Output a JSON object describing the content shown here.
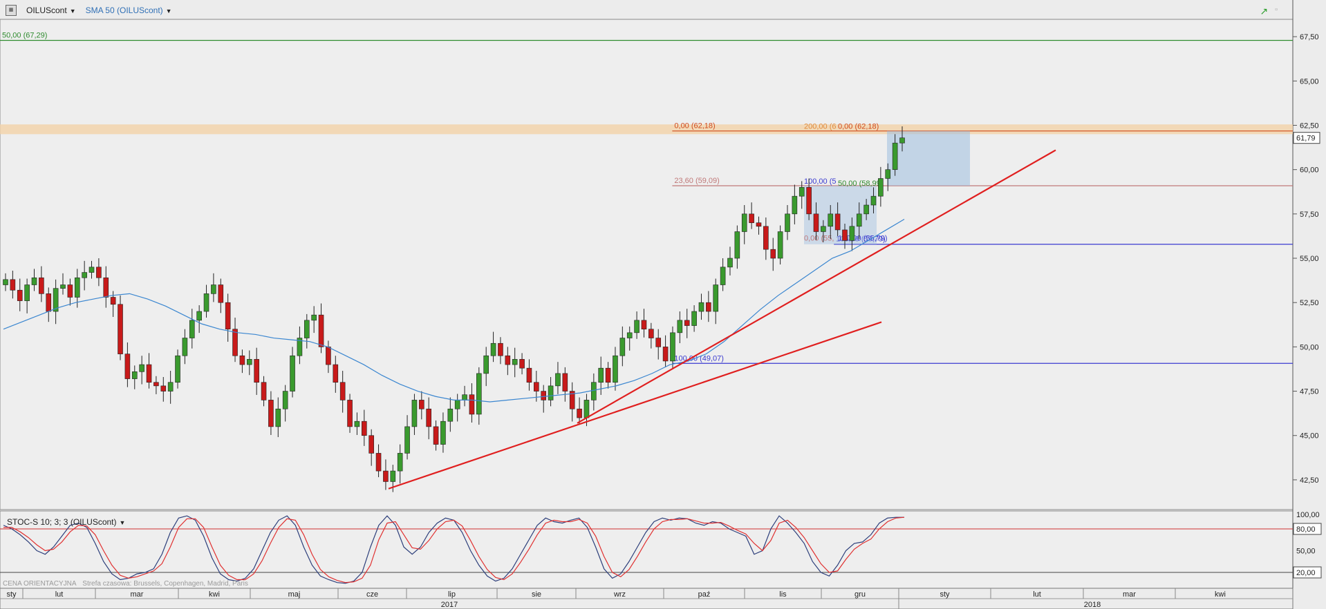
{
  "toolbar": {
    "symbol": "OILUScont",
    "indicator": "SMA 50 (OILUScont)"
  },
  "stochastic": {
    "label": "STOC-S 10; 3; 3 (OILUScont)"
  },
  "footer": {
    "price_type": "CENA ORIENTACYJNA",
    "timezone": "Strefa czasowa: Brussels, Copenhagen, Madrid, Paris"
  },
  "current_price_label": "61,79",
  "colors": {
    "up": "#3a9a2e",
    "down": "#c81a1a",
    "sma": "#3a86d0",
    "trend": "#e01f1f",
    "fib_level": "#3a3ad0"
  },
  "chart_data": {
    "type": "candlestick",
    "y_ticks": [
      "67,50",
      "65,00",
      "62,50",
      "60,00",
      "57,50",
      "55,00",
      "52,50",
      "50,00",
      "47,50",
      "45,00",
      "42,50"
    ],
    "y_range": [
      40.9,
      68.4
    ],
    "x_months": [
      "sty",
      "lut",
      "mar",
      "kwi",
      "maj",
      "cze",
      "lip",
      "sie",
      "wrz",
      "paź",
      "lis",
      "gru",
      "sty",
      "lut",
      "mar",
      "kwi"
    ],
    "x_years": [
      "2017",
      "2018"
    ],
    "levels": [
      {
        "label": "50,00 (67,29)",
        "value": 67.29,
        "color": "#2e8b2e",
        "x_start_frac": 0.0
      },
      {
        "label": "0,00 (62,18)",
        "value": 62.18,
        "color": "#d04a1a",
        "x_start_frac": 0.52
      },
      {
        "label": "23,60 (59,09)",
        "value": 59.09,
        "color": "#c07878",
        "x_start_frac": 0.52
      },
      {
        "label": "100,00 (55,79)",
        "value": 55.79,
        "color": "#3a3ad0",
        "x_start_frac": 0.645
      },
      {
        "label": "100,00 (49,07)",
        "value": 49.07,
        "color": "#3a3ad0",
        "x_start_frac": 0.52
      }
    ],
    "extra_labels": [
      "200,00 (6",
      "0,00 (62,18)",
      "100,00 (5",
      "50,00 (58,99)",
      "0,00 (55,"
    ],
    "close_series": [
      53.8,
      53.2,
      52.6,
      53.5,
      53.9,
      53.0,
      52.0,
      53.3,
      53.5,
      52.8,
      53.9,
      54.2,
      54.5,
      53.9,
      52.8,
      52.4,
      49.6,
      48.2,
      48.6,
      49.0,
      48.0,
      47.8,
      47.5,
      48.0,
      49.5,
      50.5,
      51.5,
      52.0,
      53.0,
      53.5,
      52.5,
      51.0,
      49.5,
      49.0,
      49.3,
      48.0,
      47.0,
      45.5,
      46.5,
      47.5,
      49.5,
      50.5,
      51.5,
      51.8,
      50.0,
      49.0,
      48.0,
      47.0,
      45.5,
      45.8,
      45.0,
      44.0,
      43.0,
      42.4,
      43.0,
      44.0,
      45.5,
      47.0,
      46.5,
      45.5,
      44.5,
      45.8,
      46.5,
      47.0,
      47.3,
      46.2,
      48.5,
      49.5,
      50.2,
      49.5,
      49.0,
      49.3,
      48.8,
      48.0,
      47.5,
      47.0,
      47.8,
      48.5,
      47.5,
      46.5,
      46.0,
      47.0,
      48.0,
      48.8,
      48.0,
      49.5,
      50.5,
      50.8,
      51.5,
      51.0,
      50.5,
      50.0,
      49.2,
      50.8,
      51.5,
      51.2,
      52.0,
      52.5,
      52.0,
      53.5,
      54.5,
      55.0,
      56.5,
      57.5,
      57.0,
      56.8,
      55.5,
      55.0,
      56.5,
      57.5,
      58.5,
      59.0,
      57.5,
      56.5,
      56.8,
      57.5,
      56.6,
      56.0,
      56.8,
      57.5,
      58.0,
      58.5,
      59.5,
      60.0,
      61.5,
      61.79
    ],
    "sma_series": [
      51.0,
      51.4,
      51.8,
      52.2,
      52.5,
      52.7,
      52.9,
      53.0,
      52.7,
      52.3,
      51.8,
      51.3,
      51.0,
      50.8,
      50.7,
      50.5,
      50.4,
      50.3,
      50.0,
      49.5,
      49.0,
      48.4,
      47.9,
      47.5,
      47.2,
      47.0,
      47.0,
      46.9,
      47.0,
      47.1,
      47.2,
      47.3,
      47.4,
      47.6,
      47.8,
      48.1,
      48.5,
      49.0,
      49.2,
      49.6,
      50.3,
      51.2,
      52.1,
      52.9,
      53.6,
      54.3,
      55.0,
      55.4,
      56.0,
      56.6,
      57.2
    ],
    "stoch_levels": [
      100,
      80,
      50,
      20
    ],
    "stoch_k": [
      85,
      80,
      72,
      62,
      50,
      45,
      55,
      70,
      85,
      88,
      82,
      60,
      35,
      18,
      10,
      12,
      18,
      20,
      25,
      45,
      75,
      95,
      98,
      92,
      70,
      40,
      18,
      10,
      8,
      12,
      25,
      50,
      75,
      92,
      98,
      85,
      55,
      30,
      15,
      10,
      6,
      5,
      8,
      20,
      55,
      85,
      98,
      85,
      55,
      45,
      55,
      75,
      88,
      95,
      92,
      75,
      50,
      30,
      15,
      8,
      12,
      25,
      45,
      65,
      85,
      95,
      90,
      88,
      92,
      95,
      82,
      55,
      25,
      12,
      18,
      35,
      55,
      75,
      90,
      95,
      92,
      95,
      94,
      88,
      85,
      90,
      88,
      80,
      75,
      70,
      45,
      50,
      80,
      98,
      88,
      75,
      60,
      35,
      20,
      15,
      30,
      50,
      60,
      62,
      72,
      88,
      95,
      96,
      96
    ],
    "stoch_d": [
      82,
      82,
      76,
      68,
      58,
      50,
      52,
      62,
      76,
      85,
      84,
      72,
      50,
      30,
      16,
      12,
      14,
      18,
      22,
      32,
      55,
      82,
      94,
      94,
      82,
      55,
      30,
      16,
      10,
      10,
      18,
      36,
      60,
      82,
      94,
      92,
      72,
      45,
      24,
      14,
      9,
      6,
      7,
      12,
      30,
      65,
      88,
      90,
      72,
      54,
      52,
      64,
      80,
      90,
      92,
      84,
      64,
      42,
      24,
      13,
      10,
      18,
      34,
      52,
      72,
      88,
      92,
      90,
      90,
      93,
      88,
      70,
      42,
      20,
      14,
      24,
      42,
      62,
      80,
      90,
      93,
      93,
      94,
      91,
      88,
      88,
      89,
      84,
      78,
      73,
      60,
      50,
      64,
      88,
      92,
      82,
      68,
      50,
      32,
      20,
      22,
      38,
      52,
      60,
      66,
      80,
      90,
      95,
      96
    ]
  }
}
